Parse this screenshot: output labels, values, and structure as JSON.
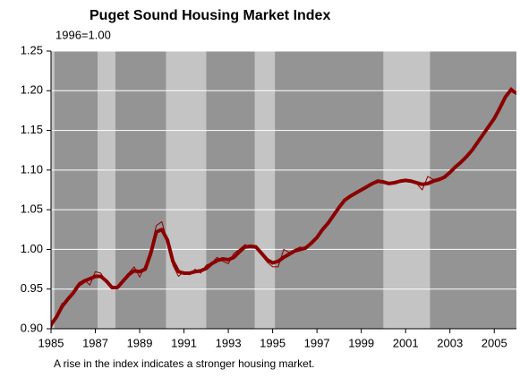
{
  "chart_data": {
    "type": "line",
    "title": "Puget Sound Housing Market Index",
    "subtitle": "1996=1.00",
    "note": "A rise in the index indicates a stronger housing market.",
    "xlim": [
      1985,
      2006
    ],
    "xticks": [
      1985,
      1987,
      1989,
      1991,
      1993,
      1995,
      1997,
      1999,
      2001,
      2003,
      2005
    ],
    "ylim": [
      0.9,
      1.25
    ],
    "yticks": [
      {
        "value": 0.9,
        "label": "0.90"
      },
      {
        "value": 0.95,
        "label": "0.95"
      },
      {
        "value": 1.0,
        "label": "1.00"
      },
      {
        "value": 1.05,
        "label": "1.05"
      },
      {
        "value": 1.1,
        "label": "1.10"
      },
      {
        "value": 1.15,
        "label": "1.15"
      },
      {
        "value": 1.2,
        "label": "1.20"
      },
      {
        "value": 1.25,
        "label": "1.25"
      }
    ],
    "grid": true,
    "grid_color": "#ffffff",
    "band_colors": {
      "dark": "#949494",
      "light": "#c4c4c4"
    },
    "bands": [
      {
        "start": 1985,
        "end": 1985.15,
        "shade": "light"
      },
      {
        "start": 1985.15,
        "end": 1987.1,
        "shade": "dark"
      },
      {
        "start": 1987.1,
        "end": 1987.9,
        "shade": "light"
      },
      {
        "start": 1987.9,
        "end": 1990.2,
        "shade": "dark"
      },
      {
        "start": 1990.2,
        "end": 1992.0,
        "shade": "light"
      },
      {
        "start": 1992.0,
        "end": 1994.2,
        "shade": "dark"
      },
      {
        "start": 1994.2,
        "end": 1995.1,
        "shade": "light"
      },
      {
        "start": 1995.1,
        "end": 2000.0,
        "shade": "dark"
      },
      {
        "start": 2000.0,
        "end": 2002.1,
        "shade": "light"
      },
      {
        "start": 2002.1,
        "end": 2006,
        "shade": "dark"
      }
    ],
    "x": [
      1985,
      1985.25,
      1985.5,
      1985.75,
      1986,
      1986.25,
      1986.5,
      1986.75,
      1987,
      1987.25,
      1987.5,
      1987.75,
      1988,
      1988.25,
      1988.5,
      1988.75,
      1989,
      1989.25,
      1989.5,
      1989.75,
      1990,
      1990.25,
      1990.5,
      1990.75,
      1991,
      1991.25,
      1991.5,
      1991.75,
      1992,
      1992.25,
      1992.5,
      1992.75,
      1993,
      1993.25,
      1993.5,
      1993.75,
      1994,
      1994.25,
      1994.5,
      1994.75,
      1995,
      1995.25,
      1995.5,
      1995.75,
      1996,
      1996.25,
      1996.5,
      1996.75,
      1997,
      1997.25,
      1997.5,
      1997.75,
      1998,
      1998.25,
      1998.5,
      1998.75,
      1999,
      1999.25,
      1999.5,
      1999.75,
      2000,
      2000.25,
      2000.5,
      2000.75,
      2001,
      2001.25,
      2001.5,
      2001.75,
      2002,
      2002.25,
      2002.5,
      2002.75,
      2003,
      2003.25,
      2003.5,
      2003.75,
      2004,
      2004.25,
      2004.5,
      2004.75,
      2005,
      2005.25,
      2005.5,
      2005.75,
      2006
    ],
    "series": [
      {
        "color": "#8b0000",
        "style": "thick",
        "values": [
          0.905,
          0.915,
          0.928,
          0.937,
          0.945,
          0.955,
          0.96,
          0.963,
          0.966,
          0.966,
          0.96,
          0.952,
          0.952,
          0.96,
          0.968,
          0.973,
          0.972,
          0.975,
          0.995,
          1.022,
          1.025,
          1.012,
          0.985,
          0.972,
          0.97,
          0.97,
          0.972,
          0.973,
          0.976,
          0.982,
          0.986,
          0.988,
          0.987,
          0.99,
          0.997,
          1.003,
          1.004,
          1.003,
          0.995,
          0.987,
          0.983,
          0.985,
          0.99,
          0.994,
          0.998,
          1.0,
          1.002,
          1.008,
          1.015,
          1.025,
          1.033,
          1.043,
          1.053,
          1.062,
          1.067,
          1.071,
          1.075,
          1.079,
          1.083,
          1.086,
          1.085,
          1.083,
          1.084,
          1.086,
          1.087,
          1.086,
          1.084,
          1.082,
          1.083,
          1.086,
          1.088,
          1.091,
          1.097,
          1.104,
          1.11,
          1.117,
          1.125,
          1.135,
          1.145,
          1.155,
          1.165,
          1.178,
          1.192,
          1.201,
          1.197
        ]
      },
      {
        "color": "#8b0000",
        "style": "thin",
        "values": [
          0.9,
          0.918,
          0.932,
          0.935,
          0.948,
          0.958,
          0.962,
          0.955,
          0.972,
          0.97,
          0.958,
          0.95,
          0.953,
          0.962,
          0.97,
          0.978,
          0.965,
          0.98,
          1.0,
          1.03,
          1.035,
          1.01,
          0.98,
          0.966,
          0.972,
          0.968,
          0.975,
          0.97,
          0.98,
          0.983,
          0.99,
          0.985,
          0.982,
          0.995,
          1.0,
          1.006,
          1.002,
          1.005,
          0.993,
          0.984,
          0.978,
          0.978,
          1.0,
          0.996,
          1.0,
          1.003,
          1.0,
          1.01,
          1.017,
          1.025,
          1.035,
          1.043,
          1.053,
          1.062,
          1.067,
          1.071,
          1.075,
          1.08,
          1.083,
          1.088,
          1.083,
          1.082,
          1.086,
          1.086,
          1.088,
          1.086,
          1.083,
          1.075,
          1.092,
          1.088,
          1.09,
          1.091,
          1.097,
          1.104,
          1.11,
          1.117,
          1.125,
          1.135,
          1.145,
          1.155,
          1.165,
          1.178,
          1.192,
          1.204,
          1.198
        ]
      }
    ]
  }
}
